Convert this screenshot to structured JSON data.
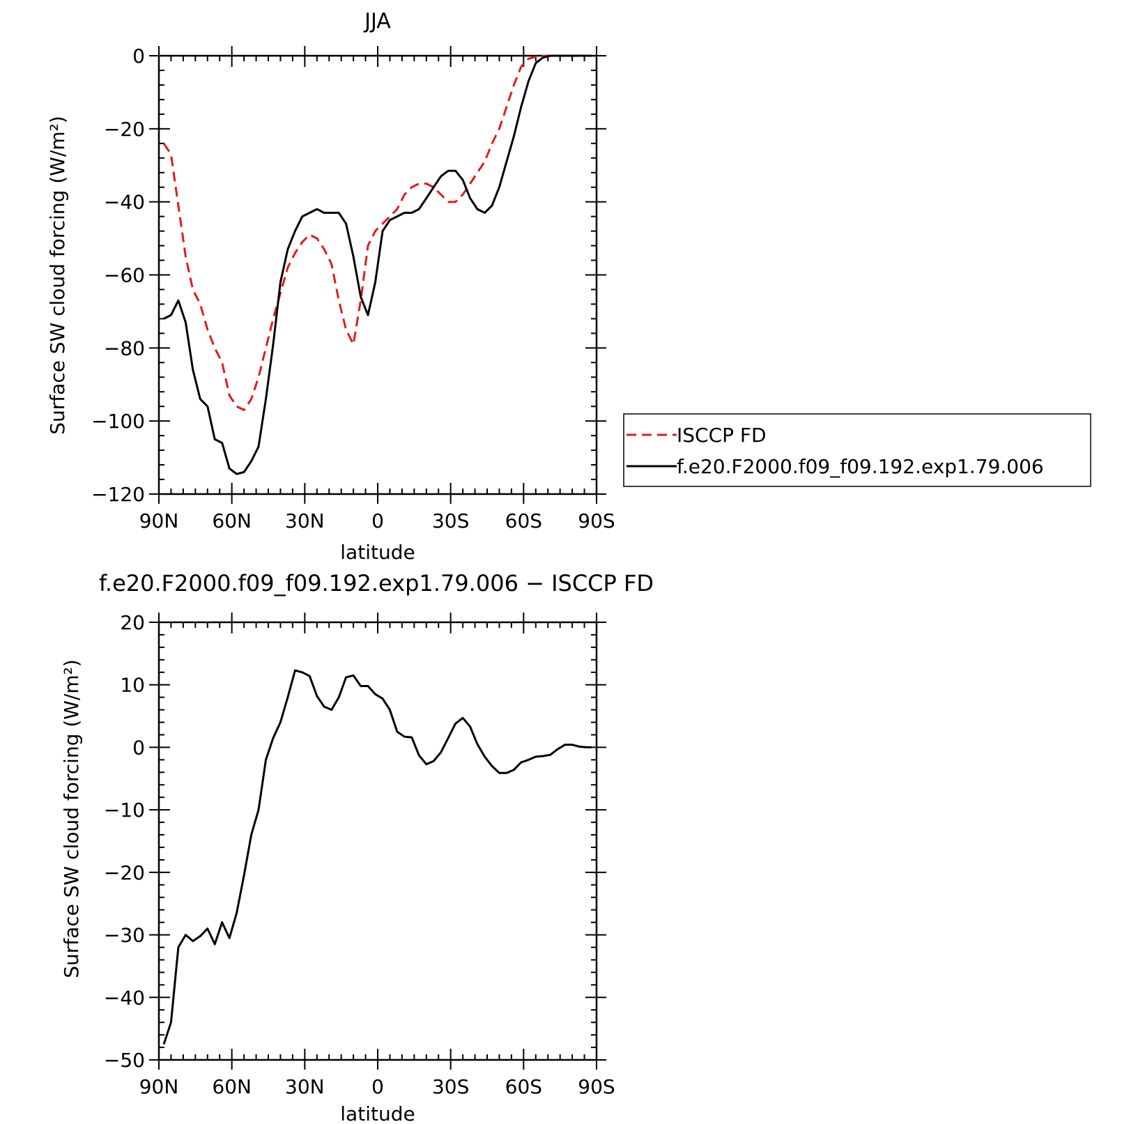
{
  "chart_data": [
    {
      "type": "line",
      "title": "JJA",
      "xlabel": "latitude",
      "ylabel": "Surface SW cloud forcing (W/m²)",
      "xlim": [
        90,
        -90
      ],
      "ylim": [
        -120,
        0
      ],
      "xticks": [
        {
          "value": 90,
          "label": "90N"
        },
        {
          "value": 60,
          "label": "60N"
        },
        {
          "value": 30,
          "label": "30N"
        },
        {
          "value": 0,
          "label": "0"
        },
        {
          "value": -30,
          "label": "30S"
        },
        {
          "value": -60,
          "label": "60S"
        },
        {
          "value": -90,
          "label": "90S"
        }
      ],
      "yticks": [
        0,
        -20,
        -40,
        -60,
        -80,
        -100,
        -120
      ],
      "legend_position": "right",
      "series": [
        {
          "name": "ISCCP FD",
          "color": "#e41a1c",
          "dash": "dashed",
          "x": [
            88,
            85,
            82,
            79,
            76,
            73,
            70,
            67,
            64,
            61,
            58,
            55,
            52,
            49,
            46,
            43,
            40,
            37,
            34,
            31,
            28,
            25,
            22,
            19,
            16,
            13,
            10,
            7,
            4,
            1,
            -2,
            -5,
            -8,
            -11,
            -14,
            -17,
            -20,
            -23,
            -26,
            -29,
            -32,
            -35,
            -38,
            -41,
            -44,
            -47,
            -50,
            -53,
            -56,
            -59,
            -62,
            -65,
            -68,
            -71,
            -74,
            -77,
            -80,
            -83,
            -86,
            -88
          ],
          "y": [
            -24,
            -27,
            -41,
            -55,
            -64,
            -68,
            -75,
            -80,
            -84,
            -93,
            -96,
            -97,
            -94,
            -88,
            -80,
            -72,
            -65,
            -58,
            -54,
            -51,
            -49,
            -50,
            -53,
            -57,
            -67,
            -75,
            -79,
            -67,
            -52,
            -48,
            -46,
            -44,
            -42,
            -38,
            -36,
            -35,
            -35,
            -36,
            -38,
            -40,
            -40,
            -38,
            -35,
            -32,
            -29,
            -24,
            -20,
            -14,
            -8,
            -3,
            -0.8,
            -0.3,
            -0.1,
            0,
            0,
            0,
            0,
            0,
            0,
            0
          ]
        },
        {
          "name": "f.e20.F2000.f09_f09.192.exp1.79.006",
          "color": "#000000",
          "dash": "solid",
          "x": [
            88,
            85,
            82,
            79,
            76,
            73,
            70,
            67,
            64,
            61,
            58,
            55,
            52,
            49,
            46,
            43,
            40,
            37,
            34,
            31,
            28,
            25,
            22,
            19,
            16,
            13,
            10,
            7,
            4,
            1,
            -2,
            -5,
            -8,
            -11,
            -14,
            -17,
            -20,
            -23,
            -26,
            -29,
            -32,
            -35,
            -38,
            -41,
            -44,
            -47,
            -50,
            -53,
            -56,
            -59,
            -62,
            -65,
            -68,
            -71,
            -74,
            -77,
            -80,
            -83,
            -86,
            -88
          ],
          "y": [
            -72,
            -71,
            -67,
            -73,
            -86,
            -94,
            -96,
            -105,
            -106,
            -113,
            -114.5,
            -114,
            -111,
            -107,
            -94,
            -79,
            -62,
            -53,
            -48,
            -44,
            -43,
            -42,
            -43,
            -43,
            -43,
            -46,
            -55,
            -66,
            -71,
            -62,
            -48,
            -45,
            -44,
            -43,
            -43,
            -42,
            -39,
            -36,
            -33,
            -31.5,
            -31.5,
            -34,
            -39,
            -42,
            -43,
            -41,
            -36,
            -29,
            -22,
            -14,
            -7,
            -2,
            -0.5,
            0,
            0,
            0,
            0,
            0,
            0,
            0
          ]
        }
      ]
    },
    {
      "type": "line",
      "title": "f.e20.F2000.f09_f09.192.exp1.79.006 − ISCCP FD",
      "xlabel": "latitude",
      "ylabel": "Surface SW cloud forcing (W/m²)",
      "xlim": [
        90,
        -90
      ],
      "ylim": [
        -50,
        20
      ],
      "xticks": [
        {
          "value": 90,
          "label": "90N"
        },
        {
          "value": 60,
          "label": "60N"
        },
        {
          "value": 30,
          "label": "30N"
        },
        {
          "value": 0,
          "label": "0"
        },
        {
          "value": -30,
          "label": "30S"
        },
        {
          "value": -60,
          "label": "60S"
        },
        {
          "value": -90,
          "label": "90S"
        }
      ],
      "yticks": [
        20,
        10,
        0,
        -10,
        -20,
        -30,
        -40,
        -50
      ],
      "series": [
        {
          "color": "#000000",
          "dash": "solid",
          "x": [
            88,
            85,
            82,
            79,
            76,
            73,
            70,
            67,
            64,
            61,
            58,
            55,
            52,
            49,
            46,
            43,
            40,
            37,
            34,
            31,
            28,
            25,
            22,
            19,
            16,
            13,
            10,
            7,
            4,
            1,
            -2,
            -5,
            -8,
            -11,
            -14,
            -17,
            -20,
            -23,
            -26,
            -29,
            -32,
            -35,
            -38,
            -41,
            -44,
            -47,
            -50,
            -53,
            -56,
            -59,
            -62,
            -65,
            -68,
            -71,
            -74,
            -77,
            -80,
            -83,
            -86,
            -88
          ],
          "y": [
            -47.5,
            -44,
            -32,
            -30,
            -31,
            -30.2,
            -29,
            -31.5,
            -28,
            -30.5,
            -26.5,
            -20.5,
            -14,
            -10,
            -2,
            1.5,
            4,
            8,
            12.3,
            12,
            11.4,
            8.2,
            6.5,
            6,
            8,
            11.2,
            11.5,
            9.8,
            9.8,
            8.5,
            7.8,
            6,
            2.5,
            1.7,
            1.6,
            -1.3,
            -2.7,
            -2.2,
            -0.8,
            1.5,
            3.8,
            4.7,
            3.3,
            0.5,
            -1.5,
            -3,
            -4.1,
            -4.1,
            -3.6,
            -2.4,
            -2,
            -1.5,
            -1.4,
            -1.2,
            -0.3,
            0.4,
            0.4,
            0.1,
            0,
            0
          ]
        }
      ]
    }
  ]
}
